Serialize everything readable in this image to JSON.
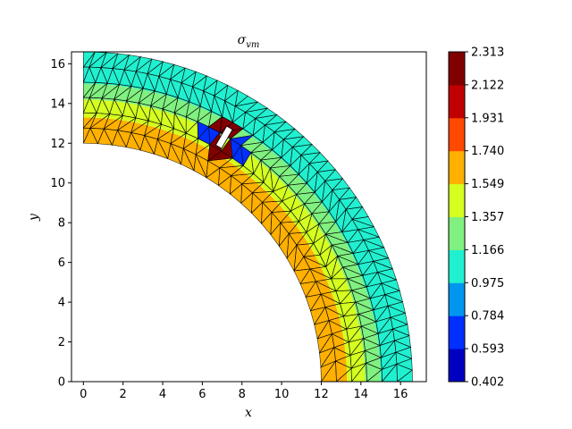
{
  "chart_data": {
    "type": "heatmap",
    "title": "σ_vm",
    "xlabel": "x",
    "ylabel": "y",
    "xlim": [
      -0.6,
      17.3
    ],
    "ylim": [
      0,
      16.6
    ],
    "xticks": [
      "0",
      "2",
      "4",
      "6",
      "8",
      "10",
      "12",
      "14",
      "16"
    ],
    "yticks": [
      "0",
      "2",
      "4",
      "6",
      "8",
      "10",
      "12",
      "14",
      "16"
    ],
    "grid": false,
    "domain": {
      "shape": "quarter annulus",
      "inner_radius": 12,
      "outer_radius": 16.6,
      "hole_center": [
        7.1,
        12.3
      ],
      "hole_half_length": 0.55,
      "hole_half_width": 0.17
    },
    "colorbar": {
      "levels": [
        "0.402",
        "0.593",
        "0.784",
        "0.975",
        "1.166",
        "1.357",
        "1.549",
        "1.740",
        "1.931",
        "2.122",
        "2.313"
      ],
      "colors": [
        "#0000c0",
        "#0030ff",
        "#0096f0",
        "#20f0d0",
        "#80f080",
        "#d4ff20",
        "#ffb000",
        "#ff4800",
        "#c00000",
        "#800000"
      ]
    },
    "bands": [
      {
        "r_from": 12.0,
        "r_to": 13.3,
        "level": "1.549"
      },
      {
        "r_from": 13.3,
        "r_to": 14.2,
        "level": "1.357"
      },
      {
        "r_from": 14.2,
        "r_to": 15.0,
        "level": "1.166"
      },
      {
        "r_from": 15.0,
        "r_to": 16.6,
        "level": "0.975"
      }
    ],
    "hotspots": [
      {
        "x": 7.1,
        "y": 12.9,
        "level": "2.313"
      },
      {
        "x": 6.8,
        "y": 11.6,
        "level": "2.313"
      },
      {
        "x": 6.2,
        "y": 12.6,
        "level": "0.593"
      },
      {
        "x": 7.9,
        "y": 11.8,
        "level": "0.593"
      }
    ]
  }
}
